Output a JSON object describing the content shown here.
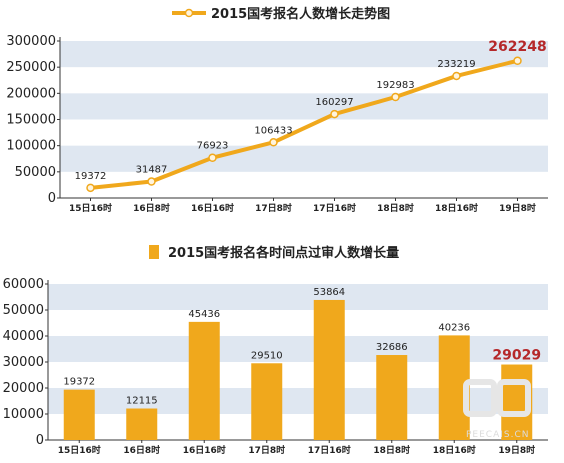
{
  "chart_data": [
    {
      "type": "line",
      "title": "2015国考报名人数增长走势图",
      "categories": [
        "15日16时",
        "16日8时",
        "16日16时",
        "17日8时",
        "17日16时",
        "18日8时",
        "18日16时",
        "19日8时"
      ],
      "series": [
        {
          "values": [
            19372,
            31487,
            76923,
            106433,
            160297,
            192983,
            233219,
            262248
          ]
        }
      ],
      "value_labels": [
        "19372",
        "31487",
        "76923",
        "106433",
        "160297",
        "192983",
        "233219",
        "262248"
      ],
      "yticks": [
        "0",
        "50000",
        "100000",
        "150000",
        "200000",
        "250000",
        "300000"
      ],
      "ylim": [
        0,
        300000
      ],
      "grid": "alternating horizontal bands",
      "colors": {
        "line": "#f0a81c",
        "marker_fill": "#fff4dd",
        "band": "#dfe7f1",
        "highlight_label": "#b5282a"
      }
    },
    {
      "type": "bar",
      "title": "2015国考报名各时间点过审人数增长量",
      "categories": [
        "15日16时",
        "16日8时",
        "16日16时",
        "17日8时",
        "17日16时",
        "18日8时",
        "18日16时",
        "19日8时"
      ],
      "series": [
        {
          "values": [
            19372,
            12115,
            45436,
            29510,
            53864,
            32686,
            40236,
            29029
          ]
        }
      ],
      "value_labels": [
        "19372",
        "12115",
        "45436",
        "29510",
        "53864",
        "32686",
        "40236",
        "29029"
      ],
      "yticks": [
        "0",
        "10000",
        "20000",
        "30000",
        "40000",
        "50000",
        "60000"
      ],
      "ylim": [
        0,
        60000
      ],
      "grid": "alternating horizontal bands",
      "colors": {
        "bar": "#f0a81c",
        "band": "#dfe7f1",
        "highlight_label": "#b5282a"
      }
    }
  ],
  "watermark": "PEECAIS.CN"
}
